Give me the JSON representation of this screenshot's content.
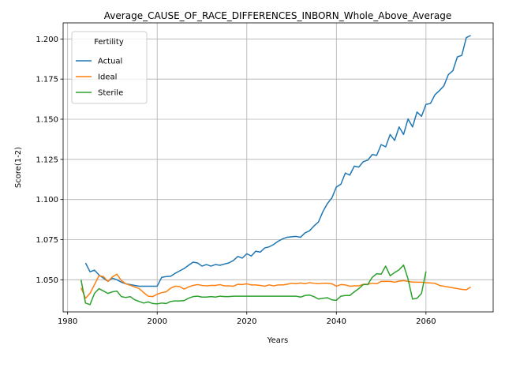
{
  "chart_data": {
    "type": "line",
    "title": "Average_CAUSE_OF_RACE_DIFFERENCES_INBORN_Whole_Above_Average",
    "xlabel": "Years",
    "ylabel": "Score(1-2)",
    "xlim": [
      1979,
      2075
    ],
    "ylim": [
      1.03,
      1.21
    ],
    "xticks": [
      1980,
      2000,
      2020,
      2040,
      2060
    ],
    "yticks": [
      1.05,
      1.075,
      1.1,
      1.125,
      1.15,
      1.175,
      1.2
    ],
    "ytick_labels": [
      "1.050",
      "1.075",
      "1.100",
      "1.125",
      "1.150",
      "1.175",
      "1.200"
    ],
    "grid": true,
    "legend": {
      "title": "Fertility",
      "placement": "top-left"
    },
    "series": [
      {
        "name": "Actual",
        "color": "#1f77b4",
        "x": [
          1984,
          1985,
          1986,
          1987,
          1988,
          1989,
          1990,
          1991,
          1992,
          1993,
          1994,
          1995,
          1996,
          1997,
          1998,
          1999,
          2000,
          2001,
          2002,
          2003,
          2004,
          2005,
          2006,
          2007,
          2008,
          2009,
          2010,
          2011,
          2012,
          2013,
          2014,
          2015,
          2016,
          2017,
          2018,
          2019,
          2020,
          2021,
          2022,
          2023,
          2024,
          2025,
          2026,
          2027,
          2028,
          2029,
          2030,
          2031,
          2032,
          2033,
          2034,
          2035,
          2036,
          2037,
          2038,
          2039,
          2040,
          2041,
          2042,
          2043,
          2044,
          2045,
          2046,
          2047,
          2048,
          2049,
          2050,
          2051,
          2052,
          2053,
          2054,
          2055,
          2056,
          2057,
          2058,
          2059,
          2060,
          2061,
          2062,
          2063,
          2064,
          2065,
          2066,
          2067,
          2068,
          2069,
          2070
        ],
        "values": [
          1.0605,
          1.055,
          1.056,
          1.053,
          1.051,
          1.049,
          1.051,
          1.05,
          1.0485,
          1.0475,
          1.047,
          1.0465,
          1.046,
          1.046,
          1.046,
          1.046,
          1.046,
          1.0515,
          1.052,
          1.0522,
          1.054,
          1.0555,
          1.057,
          1.059,
          1.061,
          1.0605,
          1.0585,
          1.0595,
          1.0585,
          1.0595,
          1.059,
          1.0598,
          1.0605,
          1.062,
          1.0645,
          1.0635,
          1.0662,
          1.0648,
          1.0678,
          1.0672,
          1.0698,
          1.0705,
          1.072,
          1.074,
          1.0755,
          1.0765,
          1.0768,
          1.077,
          1.0765,
          1.0792,
          1.0805,
          1.0835,
          1.086,
          1.0925,
          1.0975,
          1.101,
          1.1078,
          1.1095,
          1.1165,
          1.1152,
          1.1208,
          1.1202,
          1.1235,
          1.1245,
          1.128,
          1.1275,
          1.1342,
          1.1328,
          1.1405,
          1.1368,
          1.1452,
          1.1405,
          1.1502,
          1.1452,
          1.1545,
          1.1518,
          1.1592,
          1.1598,
          1.1652,
          1.1678,
          1.1708,
          1.1778,
          1.1802,
          1.1888,
          1.1898,
          1.2008,
          1.2022
        ]
      },
      {
        "name": "Ideal",
        "color": "#ff7f0e",
        "x": [
          1983,
          1984,
          1985,
          1986,
          1987,
          1988,
          1989,
          1990,
          1991,
          1992,
          1993,
          1994,
          1995,
          1996,
          1997,
          1998,
          1999,
          2000,
          2001,
          2002,
          2003,
          2004,
          2005,
          2006,
          2007,
          2008,
          2009,
          2010,
          2011,
          2012,
          2013,
          2014,
          2015,
          2016,
          2017,
          2018,
          2019,
          2020,
          2021,
          2022,
          2023,
          2024,
          2025,
          2026,
          2027,
          2028,
          2029,
          2030,
          2031,
          2032,
          2033,
          2034,
          2035,
          2036,
          2037,
          2038,
          2039,
          2040,
          2041,
          2042,
          2043,
          2044,
          2045,
          2046,
          2047,
          2048,
          2049,
          2050,
          2051,
          2052,
          2053,
          2054,
          2055,
          2056,
          2057,
          2058,
          2059,
          2060,
          2061,
          2062,
          2063,
          2064,
          2065,
          2066,
          2067,
          2068,
          2069,
          2070
        ],
        "values": [
          1.045,
          1.0385,
          1.0415,
          1.047,
          1.0525,
          1.052,
          1.049,
          1.0518,
          1.0535,
          1.0495,
          1.0475,
          1.0465,
          1.0455,
          1.0445,
          1.042,
          1.0398,
          1.0395,
          1.041,
          1.042,
          1.0425,
          1.0448,
          1.046,
          1.0458,
          1.0442,
          1.0455,
          1.0465,
          1.047,
          1.0465,
          1.0462,
          1.0465,
          1.0465,
          1.047,
          1.0462,
          1.0462,
          1.046,
          1.0472,
          1.047,
          1.0475,
          1.0468,
          1.0468,
          1.0465,
          1.046,
          1.0468,
          1.0462,
          1.0468,
          1.0468,
          1.0472,
          1.0478,
          1.0475,
          1.048,
          1.0475,
          1.0482,
          1.0478,
          1.0475,
          1.0478,
          1.0478,
          1.0475,
          1.046,
          1.047,
          1.0468,
          1.046,
          1.0462,
          1.0462,
          1.0472,
          1.0472,
          1.0478,
          1.0475,
          1.049,
          1.049,
          1.049,
          1.0485,
          1.0492,
          1.0495,
          1.049,
          1.0485,
          1.0485,
          1.0485,
          1.0482,
          1.048,
          1.0478,
          1.0465,
          1.046,
          1.0455,
          1.045,
          1.0445,
          1.044,
          1.0438,
          1.0455
        ]
      },
      {
        "name": "Sterile",
        "color": "#2ca02c",
        "x": [
          1983,
          1984,
          1985,
          1986,
          1987,
          1988,
          1989,
          1990,
          1991,
          1992,
          1993,
          1994,
          1995,
          1996,
          1997,
          1998,
          1999,
          2000,
          2001,
          2002,
          2003,
          2004,
          2005,
          2006,
          2007,
          2008,
          2009,
          2010,
          2011,
          2012,
          2013,
          2014,
          2015,
          2016,
          2017,
          2018,
          2019,
          2020,
          2021,
          2022,
          2023,
          2024,
          2025,
          2026,
          2027,
          2028,
          2029,
          2030,
          2031,
          2032,
          2033,
          2034,
          2035,
          2036,
          2037,
          2038,
          2039,
          2040,
          2041,
          2042,
          2043,
          2044,
          2045,
          2046,
          2047,
          2048,
          2049,
          2050,
          2051,
          2052,
          2053,
          2054,
          2055,
          2056,
          2057,
          2058,
          2059,
          2060
        ],
        "values": [
          1.05,
          1.0355,
          1.0345,
          1.0415,
          1.0445,
          1.043,
          1.0415,
          1.0425,
          1.043,
          1.0395,
          1.039,
          1.0395,
          1.0375,
          1.0365,
          1.0355,
          1.0362,
          1.0352,
          1.035,
          1.0355,
          1.0352,
          1.0365,
          1.0368,
          1.0368,
          1.037,
          1.0385,
          1.0395,
          1.0398,
          1.0392,
          1.0392,
          1.0395,
          1.0392,
          1.0398,
          1.0395,
          1.0395,
          1.0398,
          1.0398,
          1.0398,
          1.0398,
          1.0398,
          1.0398,
          1.0398,
          1.0398,
          1.0398,
          1.0398,
          1.0398,
          1.0398,
          1.0398,
          1.0398,
          1.0398,
          1.0392,
          1.0402,
          1.0405,
          1.0395,
          1.038,
          1.0385,
          1.0388,
          1.0375,
          1.0372,
          1.0398,
          1.0402,
          1.0402,
          1.0425,
          1.0445,
          1.047,
          1.047,
          1.0515,
          1.0538,
          1.0535,
          1.0585,
          1.0525,
          1.0545,
          1.0562,
          1.0592,
          1.0505,
          1.038,
          1.0385,
          1.0415,
          1.0552
        ]
      }
    ]
  }
}
